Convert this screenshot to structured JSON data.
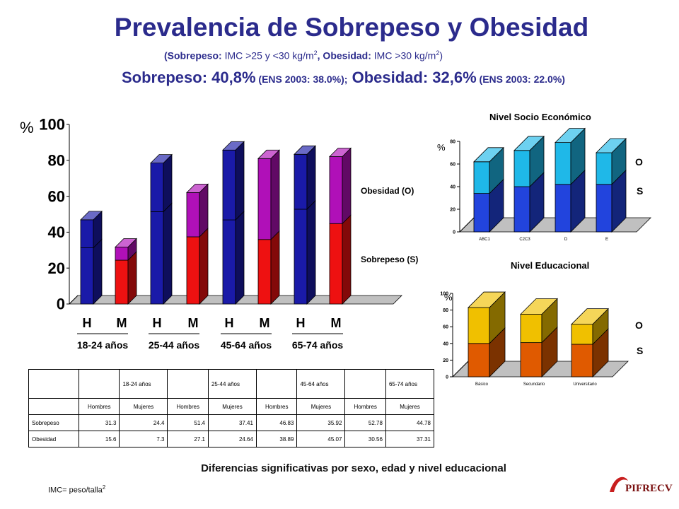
{
  "header": {
    "title": "Prevalencia de Sobrepeso y Obesidad",
    "subtitle": {
      "sobrepeso_label": "(Sobrepeso:",
      "sobrepeso_def": " IMC >25 y <30 kg/m",
      "obesidad_label": ", Obesidad:",
      "obesidad_def": " IMC >30 kg/m",
      "sup": "2",
      "close": ")"
    },
    "summary": {
      "sobrepeso": "Sobrepeso: 40,8%",
      "sobrepeso_ref": " (ENS 2003: 38.0%);",
      "obesidad": " Obesidad: 32,6%",
      "obesidad_ref": " (ENS 2003: 22.0%)"
    }
  },
  "chart_data": [
    {
      "type": "bar",
      "stacked": true,
      "yunit": "%",
      "ylim": [
        0,
        100
      ],
      "yticks": [
        0,
        20,
        40,
        60,
        80,
        100
      ],
      "categories": [
        "H",
        "M",
        "H",
        "M",
        "H",
        "M",
        "H",
        "M"
      ],
      "groups": [
        "18-24 años",
        "25-44 años",
        "45-64 años",
        "65-74 años"
      ],
      "series": [
        {
          "name": "Sobrepeso (S)",
          "values": [
            31.3,
            24.4,
            51.4,
            37.41,
            46.83,
            35.92,
            52.78,
            44.78
          ]
        },
        {
          "name": "Obesidad (O)",
          "values": [
            15.6,
            7.3,
            27.1,
            24.64,
            38.89,
            45.07,
            30.56,
            37.31
          ]
        }
      ],
      "colors": {
        "hombres": "#1a1aa8",
        "mujeres_s": "#ee1111",
        "mujeres_o": "#b010b8"
      }
    },
    {
      "type": "bar",
      "stacked": true,
      "title": "Nivel Socio Económico",
      "yunit": "%",
      "ylim": [
        0,
        80
      ],
      "yticks": [
        0,
        20,
        40,
        60,
        80
      ],
      "categories": [
        "ABC1",
        "C2C3",
        "D",
        "E"
      ],
      "series": [
        {
          "name": "S",
          "values": [
            34,
            40,
            42,
            42
          ]
        },
        {
          "name": "O",
          "values": [
            28,
            32,
            37,
            28
          ]
        }
      ],
      "legend": [
        "O",
        "S"
      ]
    },
    {
      "type": "bar",
      "stacked": true,
      "title": "Nivel Educacional",
      "yunit": "%",
      "ylim": [
        0,
        100
      ],
      "yticks": [
        0,
        20,
        40,
        60,
        80,
        100
      ],
      "categories": [
        "Básico",
        "Secundario",
        "Universitario"
      ],
      "series": [
        {
          "name": "S",
          "values": [
            40,
            41,
            39
          ]
        },
        {
          "name": "O",
          "values": [
            43,
            34,
            24
          ]
        }
      ],
      "legend": [
        "O",
        "S"
      ]
    }
  ],
  "table": {
    "groups": [
      "18-24 años",
      "25-44 años",
      "45-64 años",
      "65-74 años"
    ],
    "subheaders": [
      "Hombres",
      "Mujeres",
      "Hombres",
      "Mujeres",
      "Hombres",
      "Mujeres",
      "Hombres",
      "Mujeres"
    ],
    "rows": [
      {
        "label": "Sobrepeso",
        "values": [
          "31.3",
          "24.4",
          "51.4",
          "37.41",
          "46.83",
          "35.92",
          "52.78",
          "44.78"
        ]
      },
      {
        "label": "Obesidad",
        "values": [
          "15.6",
          "7.3",
          "27.1",
          "24.64",
          "38.89",
          "45.07",
          "30.56",
          "37.31"
        ]
      }
    ]
  },
  "footer": {
    "note": "Diferencias significativas por sexo, edad y nivel educacional",
    "imc": "IMC= peso/talla",
    "imc_sup": "2",
    "logo_text": "PIFRECV"
  }
}
